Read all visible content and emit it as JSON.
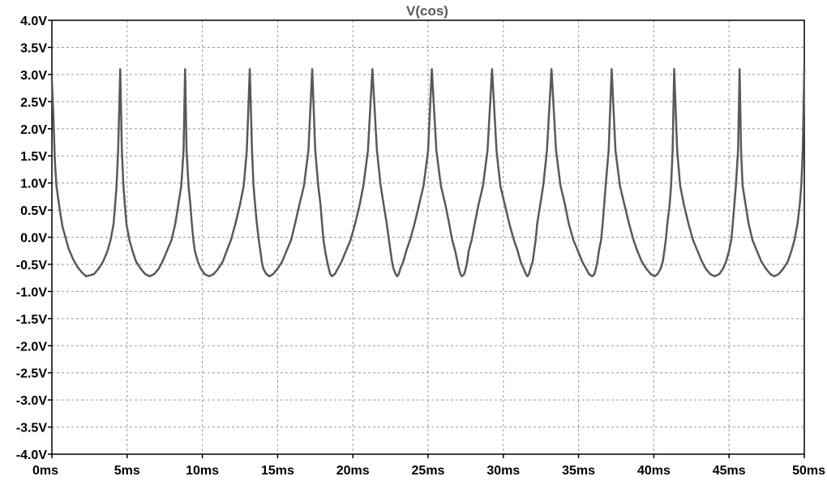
{
  "chart_data": {
    "type": "line",
    "title": "V(cos)",
    "xlabel": "",
    "ylabel": "",
    "xlim": [
      0,
      50
    ],
    "ylim": [
      -4.0,
      4.0
    ],
    "x_unit": "ms",
    "y_unit": "V",
    "x_ticks": [
      "0ms",
      "5ms",
      "10ms",
      "15ms",
      "20ms",
      "25ms",
      "30ms",
      "35ms",
      "40ms",
      "45ms",
      "50ms"
    ],
    "y_ticks": [
      "4.0V",
      "3.5V",
      "3.0V",
      "2.5V",
      "2.0V",
      "1.5V",
      "1.0V",
      "0.5V",
      "0.0V",
      "-0.5V",
      "-1.0V",
      "-1.5V",
      "-2.0V",
      "-2.5V",
      "-3.0V",
      "-3.5V",
      "-4.0V"
    ],
    "grid": true,
    "series": [
      {
        "name": "V(cos)",
        "color": "#595959",
        "x": [
          0,
          0.1,
          0.2,
          0.3,
          0.5,
          0.7,
          0.9,
          1.1,
          1.4,
          1.7,
          2.0,
          2.27,
          2.55,
          2.8,
          3.1,
          3.4,
          3.7,
          3.9,
          4.1,
          4.2,
          4.3,
          4.4,
          4.54,
          4.65,
          4.75,
          4.85,
          4.95,
          5.15,
          5.35,
          5.6,
          5.9,
          6.2,
          6.5,
          6.8,
          7.1,
          7.35,
          7.65,
          7.95,
          8.2,
          8.4,
          8.6,
          8.75,
          8.85,
          8.95,
          9.08,
          9.2,
          9.3,
          9.4,
          9.5,
          9.7,
          9.9,
          10.15,
          10.45,
          10.75,
          11.05,
          11.35,
          11.62,
          11.9,
          12.2,
          12.5,
          12.75,
          12.95,
          13.15,
          13.3,
          13.4,
          13.5,
          13.62,
          13.75,
          13.85,
          13.95,
          14.05,
          14.25,
          14.45,
          14.7,
          15.0,
          15.3,
          15.6,
          15.9,
          16.16,
          16.45,
          16.75,
          17.05,
          17.3,
          17.5,
          17.7,
          17.85,
          17.95,
          18.05,
          18.16,
          18.3,
          18.4,
          18.5,
          18.6,
          18.8,
          19.0,
          19.25,
          19.55,
          19.85,
          20.15,
          20.45,
          20.7,
          21.0,
          21.3,
          21.6,
          21.85,
          22.05,
          22.25,
          22.4,
          22.5,
          22.6,
          22.7,
          22.85,
          22.95,
          23.05,
          23.15,
          23.35,
          23.55,
          23.8,
          24.1,
          24.4,
          24.7,
          25.0,
          25.25,
          25.55,
          25.85,
          26.15,
          26.4,
          26.6,
          26.8,
          26.95,
          27.05,
          27.15,
          27.25,
          27.4,
          27.5,
          27.6,
          27.7,
          27.9,
          28.1,
          28.35,
          28.65,
          28.95,
          29.25,
          29.55,
          29.8,
          30.1,
          30.4,
          30.7,
          30.95,
          31.15,
          31.35,
          31.5,
          31.6,
          31.7,
          31.8,
          31.95,
          32.05,
          32.15,
          32.25,
          32.45,
          32.65,
          32.9,
          33.2,
          33.5,
          33.8,
          34.1,
          34.35,
          34.65,
          34.95,
          35.25,
          35.5,
          35.7,
          35.9,
          36.05,
          36.15,
          36.25,
          36.35,
          36.5,
          36.6,
          36.7,
          36.8,
          37.0,
          37.2,
          37.45,
          37.75,
          38.05,
          38.35,
          38.65,
          38.9,
          39.2,
          39.5,
          39.8,
          40.05,
          40.25,
          40.45,
          40.6,
          40.7,
          40.8,
          40.9,
          41.05,
          41.15,
          41.25,
          41.35,
          41.55,
          41.75,
          42.0,
          42.3,
          42.6,
          42.9,
          43.2,
          43.45,
          43.75,
          44.05,
          44.35,
          44.6,
          44.8,
          45.0,
          45.15,
          45.25,
          45.35,
          45.45,
          45.6,
          45.7,
          45.8,
          45.9,
          46.1,
          46.3,
          46.55,
          46.85,
          47.15,
          47.45,
          47.75,
          48.0,
          48.3,
          48.6,
          48.9,
          49.15,
          49.35,
          49.55,
          49.7,
          49.8,
          49.9,
          50.0
        ],
        "y": [
          2.9,
          2.2,
          1.4,
          0.95,
          0.55,
          0.2,
          0.0,
          -0.2,
          -0.4,
          -0.55,
          -0.65,
          -0.72,
          -0.7,
          -0.68,
          -0.58,
          -0.45,
          -0.25,
          -0.05,
          0.25,
          0.6,
          0.95,
          1.6,
          3.1,
          1.6,
          0.95,
          0.6,
          0.25,
          -0.05,
          -0.25,
          -0.45,
          -0.58,
          -0.68,
          -0.72,
          -0.68,
          -0.58,
          -0.45,
          -0.25,
          -0.05,
          0.25,
          0.6,
          0.95,
          1.6,
          3.1,
          1.6,
          0.95,
          0.6,
          0.25,
          -0.05,
          -0.25,
          -0.45,
          -0.58,
          -0.68,
          -0.72,
          -0.68,
          -0.58,
          -0.45,
          -0.25,
          -0.05,
          0.25,
          0.6,
          0.95,
          1.6,
          3.1,
          1.6,
          0.95,
          0.6,
          0.25,
          -0.05,
          -0.25,
          -0.45,
          -0.58,
          -0.68,
          -0.72,
          -0.68,
          -0.58,
          -0.45,
          -0.25,
          -0.05,
          0.25,
          0.6,
          0.95,
          1.6,
          3.1,
          1.6,
          0.95,
          0.6,
          0.25,
          -0.05,
          -0.25,
          -0.45,
          -0.58,
          -0.68,
          -0.72,
          -0.68,
          -0.58,
          -0.45,
          -0.25,
          -0.05,
          0.25,
          0.6,
          0.95,
          1.6,
          3.1,
          1.6,
          0.95,
          0.6,
          0.25,
          -0.05,
          -0.25,
          -0.45,
          -0.58,
          -0.68,
          -0.72,
          -0.68,
          -0.58,
          -0.45,
          -0.25,
          -0.05,
          0.25,
          0.6,
          0.95,
          1.6,
          3.1,
          1.6,
          0.95,
          0.6,
          0.25,
          -0.05,
          -0.25,
          -0.45,
          -0.58,
          -0.68,
          -0.72,
          -0.68,
          -0.58,
          -0.45,
          -0.25,
          -0.05,
          0.25,
          0.6,
          0.95,
          1.6,
          3.1,
          1.6,
          0.95,
          0.6,
          0.25,
          -0.05,
          -0.25,
          -0.45,
          -0.58,
          -0.68,
          -0.72,
          -0.68,
          -0.58,
          -0.45,
          -0.25,
          -0.05,
          0.25,
          0.6,
          0.95,
          1.6,
          3.1,
          1.6,
          0.95,
          0.6,
          0.25,
          -0.05,
          -0.25,
          -0.45,
          -0.58,
          -0.68,
          -0.72,
          -0.68,
          -0.58,
          -0.45,
          -0.25,
          -0.05,
          0.25,
          0.6,
          0.95,
          1.6,
          3.1,
          1.6,
          0.95,
          0.6,
          0.25,
          -0.05,
          -0.25,
          -0.45,
          -0.58,
          -0.68,
          -0.72,
          -0.68,
          -0.58,
          -0.45,
          -0.25,
          -0.05,
          0.25,
          0.6,
          0.95,
          1.6,
          3.1,
          1.6,
          0.95,
          0.6,
          0.25,
          -0.05,
          -0.25,
          -0.45,
          -0.58,
          -0.68,
          -0.72,
          -0.68,
          -0.58,
          -0.45,
          -0.25,
          -0.05,
          0.25,
          0.6,
          0.95,
          1.6,
          3.1,
          1.6,
          0.95,
          0.6,
          0.25,
          -0.05,
          -0.25,
          -0.45,
          -0.58,
          -0.68,
          -0.72,
          -0.68,
          -0.58,
          -0.45,
          -0.25,
          -0.05,
          0.25,
          0.6,
          0.95,
          1.6,
          3.1
        ]
      }
    ]
  },
  "colors": {
    "background": "#ffffff",
    "frame": "#000000",
    "grid": "#9a9a9a",
    "trace": "#595959",
    "title": "#595959"
  }
}
